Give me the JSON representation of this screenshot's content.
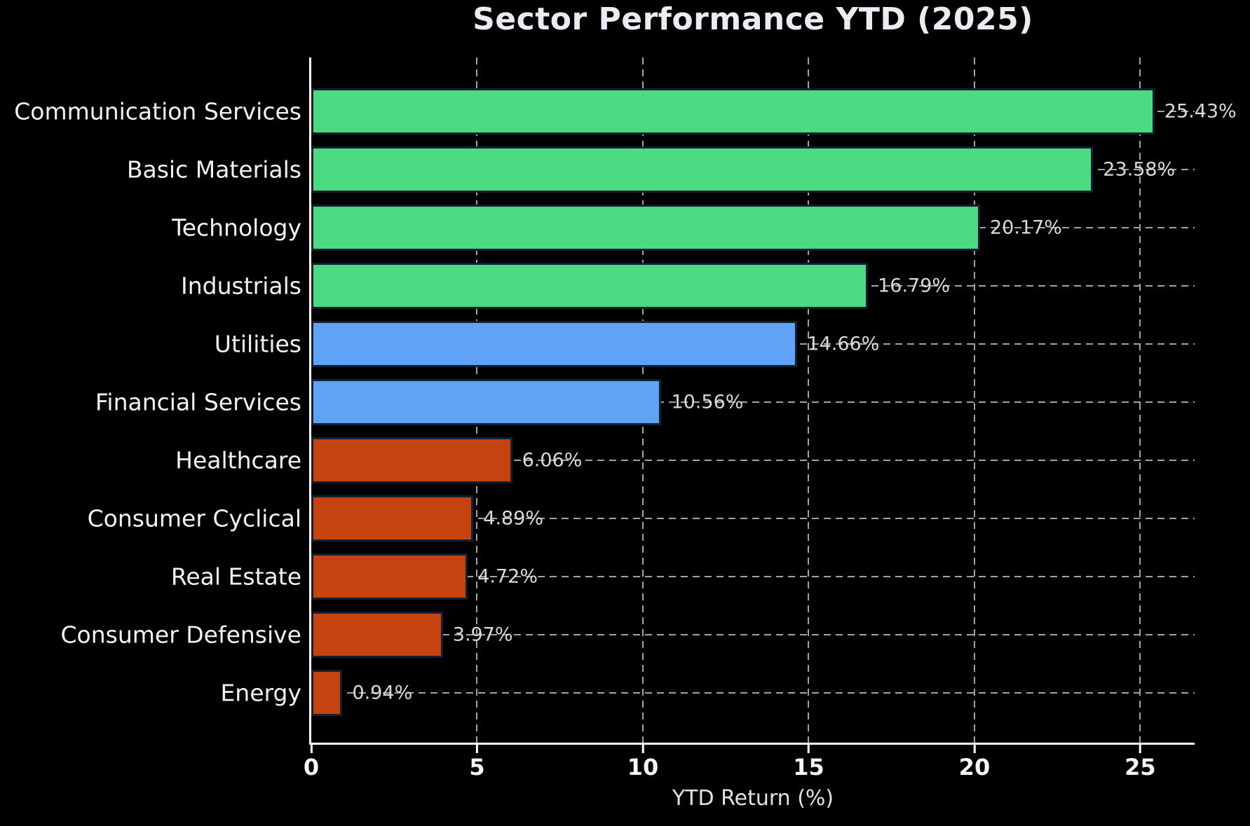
{
  "chart_data": {
    "type": "bar",
    "orientation": "horizontal",
    "title": "Sector Performance YTD (2025)",
    "xlabel": "YTD Return (%)",
    "categories": [
      "Communication Services",
      "Basic Materials",
      "Technology",
      "Industrials",
      "Utilities",
      "Financial Services",
      "Healthcare",
      "Consumer Cyclical",
      "Real Estate",
      "Consumer Defensive",
      "Energy"
    ],
    "values": [
      25.43,
      23.58,
      20.17,
      16.79,
      14.66,
      10.56,
      6.06,
      4.89,
      4.72,
      3.97,
      0.94
    ],
    "value_labels": [
      "25.43%",
      "23.58%",
      "20.17%",
      "16.79%",
      "14.66%",
      "10.56%",
      "6.06%",
      "4.89%",
      "4.72%",
      "3.97%",
      "0.94%"
    ],
    "bar_colors": [
      "#4cda83",
      "#4cda83",
      "#4cda83",
      "#4cda83",
      "#60a2f5",
      "#60a2f5",
      "#c5430e",
      "#c5430e",
      "#c5430e",
      "#c5430e",
      "#c5430e"
    ],
    "xtick_labels": [
      "0",
      "5",
      "10",
      "15",
      "20",
      "25"
    ],
    "xtick_values": [
      0,
      5,
      10,
      15,
      20,
      25
    ],
    "xlim": [
      0,
      26.64
    ],
    "grid": "dashed gray gridlines on both axes, drawn behind bars",
    "legend": "none",
    "background": "#000000"
  },
  "style": {
    "positive_strong_color": "#4cda83",
    "positive_mid_color": "#60a2f5",
    "positive_weak_color": "#c5430e",
    "bar_edge_color": "#151e32",
    "grid_color": "#a3a3a3",
    "axis_color": "#ffffff",
    "title_color": "#e9edf2",
    "category_label_color": "#f2f2f2",
    "value_label_color": "#d9d9d9"
  }
}
